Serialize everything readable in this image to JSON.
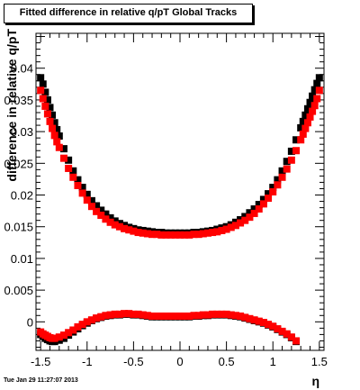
{
  "title": "Fitted difference in relative q/pT  Global Tracks",
  "timestamp": "Tue Jan 29 11:27:07 2013",
  "chart_data": {
    "type": "scatter",
    "xlabel": "η",
    "ylabel": "difference in relative q/pT",
    "xlim": [
      -1.55,
      1.55
    ],
    "ylim": [
      -0.0045,
      0.0455
    ],
    "xticks": [
      -1.5,
      -1,
      -0.5,
      0,
      0.5,
      1,
      1.5
    ],
    "xtick_labels": [
      "-1.5",
      "-1",
      "-0.5",
      "0",
      "0.5",
      "1",
      "1.5"
    ],
    "yticks": [
      0,
      0.005,
      0.01,
      0.015,
      0.02,
      0.025,
      0.03,
      0.035,
      0.04
    ],
    "ytick_labels": [
      "0",
      "0.005",
      "0.01",
      "0.015",
      "0.02",
      "0.025",
      "0.03",
      "0.035",
      "0.04"
    ],
    "grid": false,
    "legend": "none",
    "series": [
      {
        "color": "#000000",
        "marker": "square",
        "x": [
          -1.5,
          -1.475,
          -1.45,
          -1.425,
          -1.4,
          -1.375,
          -1.35,
          -1.325,
          -1.3,
          -1.25,
          -1.2,
          -1.15,
          -1.1,
          -1.05,
          -1.0,
          -0.95,
          -0.9,
          -0.85,
          -0.8,
          -0.75,
          -0.7,
          -0.65,
          -0.6,
          -0.55,
          -0.5,
          -0.45,
          -0.4,
          -0.35,
          -0.3,
          -0.25,
          -0.2,
          -0.15,
          -0.1,
          -0.05,
          0.0,
          0.05,
          0.1,
          0.15,
          0.2,
          0.25,
          0.3,
          0.35,
          0.4,
          0.45,
          0.5,
          0.55,
          0.6,
          0.65,
          0.7,
          0.75,
          0.8,
          0.85,
          0.9,
          0.95,
          1.0,
          1.05,
          1.1,
          1.15,
          1.2,
          1.25,
          1.3,
          1.325,
          1.35,
          1.375,
          1.4,
          1.425,
          1.45,
          1.475,
          1.5
        ],
        "y": [
          0.0385,
          0.0375,
          0.0362,
          0.035,
          0.0338,
          0.0326,
          0.0314,
          0.0303,
          0.0293,
          0.0273,
          0.0255,
          0.0238,
          0.0224,
          0.0212,
          0.0201,
          0.0191,
          0.0183,
          0.0176,
          0.017,
          0.0164,
          0.0159,
          0.0155,
          0.0152,
          0.0149,
          0.0147,
          0.0145,
          0.0144,
          0.0143,
          0.0142,
          0.0141,
          0.0141,
          0.014,
          0.014,
          0.014,
          0.014,
          0.014,
          0.014,
          0.0141,
          0.0141,
          0.0142,
          0.0143,
          0.0144,
          0.0146,
          0.0148,
          0.015,
          0.0153,
          0.0157,
          0.0161,
          0.0166,
          0.0172,
          0.0178,
          0.0185,
          0.0193,
          0.0202,
          0.0212,
          0.0224,
          0.0238,
          0.0253,
          0.0269,
          0.0287,
          0.0306,
          0.0316,
          0.0326,
          0.0336,
          0.0346,
          0.0356,
          0.0366,
          0.0376,
          0.0385
        ]
      },
      {
        "color": "#ff0000",
        "marker": "square",
        "x": [
          -1.5,
          -1.475,
          -1.45,
          -1.425,
          -1.4,
          -1.375,
          -1.35,
          -1.325,
          -1.3,
          -1.25,
          -1.2,
          -1.15,
          -1.1,
          -1.05,
          -1.0,
          -0.95,
          -0.9,
          -0.85,
          -0.8,
          -0.75,
          -0.7,
          -0.65,
          -0.6,
          -0.55,
          -0.5,
          -0.45,
          -0.4,
          -0.35,
          -0.3,
          -0.25,
          -0.2,
          -0.15,
          -0.1,
          -0.05,
          0.0,
          0.05,
          0.1,
          0.15,
          0.2,
          0.25,
          0.3,
          0.35,
          0.4,
          0.45,
          0.5,
          0.55,
          0.6,
          0.65,
          0.7,
          0.75,
          0.8,
          0.85,
          0.9,
          0.95,
          1.0,
          1.05,
          1.1,
          1.15,
          1.2,
          1.25,
          1.3,
          1.325,
          1.35,
          1.375,
          1.4,
          1.425,
          1.45,
          1.475,
          1.5
        ],
        "y": [
          0.0365,
          0.0352,
          0.034,
          0.0328,
          0.0316,
          0.0305,
          0.0294,
          0.0284,
          0.0275,
          0.0258,
          0.0242,
          0.0228,
          0.0215,
          0.0203,
          0.0192,
          0.0182,
          0.0174,
          0.0168,
          0.0162,
          0.0157,
          0.0153,
          0.015,
          0.0147,
          0.0145,
          0.0143,
          0.0141,
          0.014,
          0.0139,
          0.0138,
          0.0138,
          0.0137,
          0.0137,
          0.0137,
          0.0137,
          0.0137,
          0.0137,
          0.0137,
          0.0138,
          0.0138,
          0.0139,
          0.014,
          0.0141,
          0.0142,
          0.0144,
          0.0146,
          0.0149,
          0.0152,
          0.0156,
          0.016,
          0.0165,
          0.0171,
          0.0178,
          0.0186,
          0.0195,
          0.0205,
          0.0216,
          0.0228,
          0.0241,
          0.0255,
          0.027,
          0.0287,
          0.0296,
          0.0305,
          0.0314,
          0.0323,
          0.0332,
          0.0341,
          0.0352,
          0.0365
        ]
      },
      {
        "color": "#000000",
        "marker": "square",
        "x": [
          -1.5,
          -1.475,
          -1.45,
          -1.425,
          -1.4,
          -1.375,
          -1.35,
          -1.3,
          -1.25,
          -1.2,
          -1.15,
          -1.1,
          -1.05,
          -1.0,
          -0.95,
          -0.9,
          -0.85,
          -0.8,
          -0.75,
          -0.7,
          -0.65,
          -0.6,
          -0.55,
          -0.5,
          -0.45,
          -0.4,
          -0.35,
          -0.3,
          -0.25,
          -0.2,
          -0.15,
          -0.1,
          -0.05,
          0.0,
          0.05,
          0.1,
          0.15,
          0.2,
          0.25,
          0.3,
          0.35,
          0.4,
          0.45,
          0.5,
          0.55,
          0.6,
          0.65,
          0.7,
          0.75,
          0.8,
          0.85,
          0.9,
          0.95,
          1.0,
          1.05,
          1.1,
          1.15,
          1.2,
          1.25
        ],
        "y": [
          -0.002,
          -0.0023,
          -0.0026,
          -0.0028,
          -0.003,
          -0.0031,
          -0.0031,
          -0.0029,
          -0.0026,
          -0.0021,
          -0.0016,
          -0.0011,
          -0.0006,
          -0.0002,
          0.0002,
          0.0005,
          0.0007,
          0.0009,
          0.001,
          0.0011,
          0.0011,
          0.0012,
          0.0012,
          0.0011,
          0.0011,
          0.001,
          0.0009,
          0.0008,
          0.0008,
          0.0008,
          0.0008,
          0.0008,
          0.0008,
          0.0008,
          0.0008,
          0.0008,
          0.0009,
          0.0009,
          0.001,
          0.001,
          0.0011,
          0.0011,
          0.0011,
          0.0011,
          0.001,
          0.0009,
          0.0008,
          0.0006,
          0.0004,
          0.0002,
          0.0,
          -0.0002,
          -0.0005,
          -0.0008,
          -0.0012,
          -0.0016,
          -0.002,
          -0.0025,
          -0.0031
        ]
      },
      {
        "color": "#ff0000",
        "marker": "square",
        "x": [
          -1.5,
          -1.475,
          -1.45,
          -1.425,
          -1.4,
          -1.375,
          -1.35,
          -1.3,
          -1.25,
          -1.2,
          -1.15,
          -1.1,
          -1.05,
          -1.0,
          -0.95,
          -0.9,
          -0.85,
          -0.8,
          -0.75,
          -0.7,
          -0.65,
          -0.6,
          -0.55,
          -0.5,
          -0.45,
          -0.4,
          -0.35,
          -0.3,
          -0.25,
          -0.2,
          -0.15,
          -0.1,
          -0.05,
          0.0,
          0.05,
          0.1,
          0.15,
          0.2,
          0.25,
          0.3,
          0.35,
          0.4,
          0.45,
          0.5,
          0.55,
          0.6,
          0.65,
          0.7,
          0.75,
          0.8,
          0.85,
          0.9,
          0.95,
          1.0,
          1.05,
          1.1,
          1.15,
          1.2,
          1.25
        ],
        "y": [
          -0.0016,
          -0.0019,
          -0.0021,
          -0.0023,
          -0.0025,
          -0.0026,
          -0.0026,
          -0.0024,
          -0.0021,
          -0.0017,
          -0.0013,
          -0.0008,
          -0.0004,
          0.0,
          0.0003,
          0.0006,
          0.0008,
          0.001,
          0.0011,
          0.0012,
          0.0012,
          0.0013,
          0.0013,
          0.0012,
          0.0012,
          0.0011,
          0.001,
          0.0009,
          0.0009,
          0.0009,
          0.0009,
          0.0009,
          0.0009,
          0.0009,
          0.0009,
          0.0009,
          0.001,
          0.001,
          0.0011,
          0.0011,
          0.0012,
          0.0012,
          0.0012,
          0.0012,
          0.0011,
          0.001,
          0.0009,
          0.0007,
          0.0005,
          0.0003,
          0.0001,
          -0.0001,
          -0.0004,
          -0.0007,
          -0.0011,
          -0.0015,
          -0.0019,
          -0.0024,
          -0.003
        ]
      }
    ]
  }
}
